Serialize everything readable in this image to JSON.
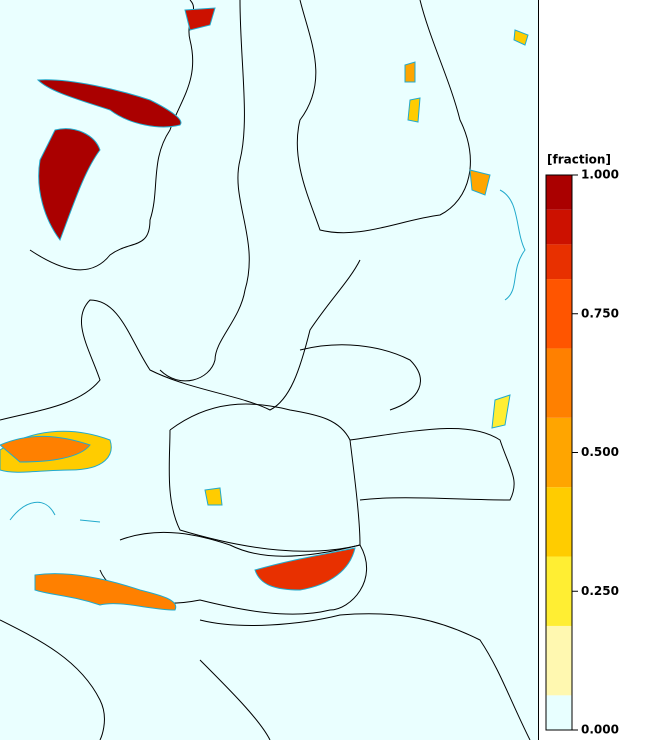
{
  "colorbar": {
    "label": "[fraction]",
    "range": [
      0,
      1
    ],
    "ticks": [
      {
        "value": 0,
        "label": "0.000"
      },
      {
        "value": 0.25,
        "label": "0.250"
      },
      {
        "value": 0.5,
        "label": "0.500"
      },
      {
        "value": 0.75,
        "label": "0.750"
      },
      {
        "value": 1,
        "label": "1.000"
      }
    ],
    "levels": [
      0,
      0.0625,
      0.1875,
      0.3125,
      0.4375,
      0.5625,
      0.6875,
      0.8125,
      0.875,
      0.9375,
      1
    ],
    "colors": [
      "#e8ffff",
      "#fff8b0",
      "#ffee33",
      "#ffcc00",
      "#ffa500",
      "#ff8000",
      "#ff5500",
      "#e83000",
      "#cc1100",
      "#aa0000"
    ]
  }
}
